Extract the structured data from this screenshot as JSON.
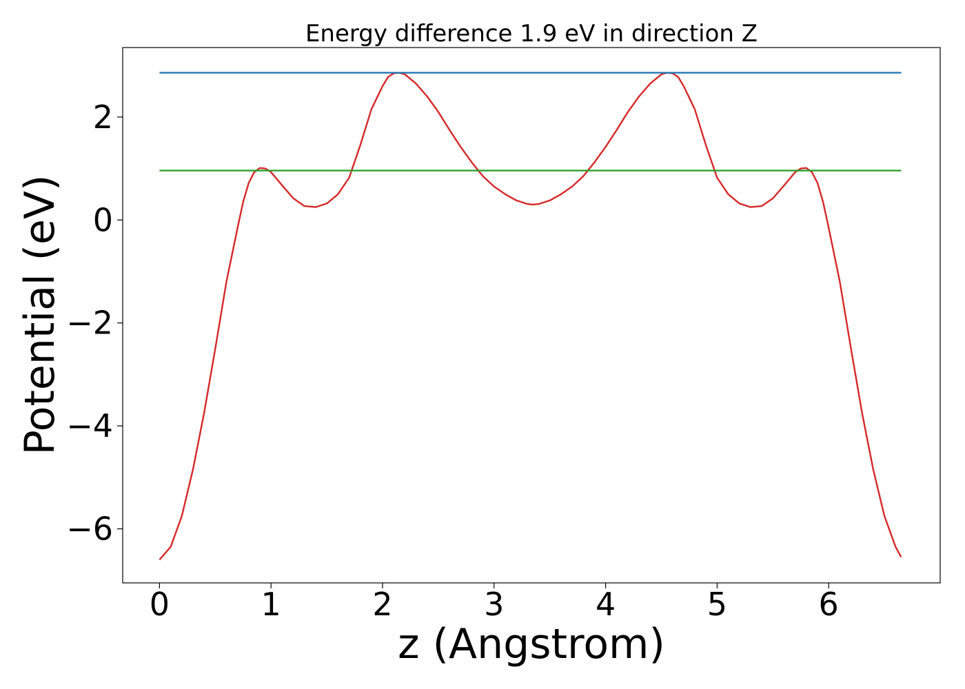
{
  "chart_data": {
    "type": "line",
    "title": "Energy difference 1.9 eV in direction Z",
    "xlabel": "z (Angstrom)",
    "ylabel": "Potential (eV)",
    "xlim": [
      -0.33,
      7.0
    ],
    "ylim": [
      -7.05,
      3.35
    ],
    "xticks": [
      0,
      1,
      2,
      3,
      4,
      5,
      6
    ],
    "xtick_labels": [
      "0",
      "1",
      "2",
      "3",
      "4",
      "5",
      "6"
    ],
    "yticks": [
      2,
      0,
      -2,
      -4,
      -6
    ],
    "ytick_labels": [
      "2",
      "0",
      "−2",
      "−4",
      "−6"
    ],
    "grid": false,
    "legend": "none",
    "series": [
      {
        "color": "#d62728",
        "x": [
          0.0,
          0.1,
          0.2,
          0.3,
          0.4,
          0.5,
          0.6,
          0.7,
          0.75,
          0.8,
          0.85,
          0.9,
          0.95,
          1.0,
          1.05,
          1.1,
          1.2,
          1.3,
          1.4,
          1.5,
          1.6,
          1.7,
          1.8,
          1.9,
          2.0,
          2.05,
          2.1,
          2.15,
          2.2,
          2.3,
          2.4,
          2.5,
          2.6,
          2.7,
          2.8,
          2.9,
          3.0,
          3.1,
          3.2,
          3.3,
          3.35,
          3.4,
          3.5,
          3.6,
          3.7,
          3.8,
          3.9,
          4.0,
          4.1,
          4.2,
          4.3,
          4.4,
          4.5,
          4.55,
          4.6,
          4.65,
          4.7,
          4.8,
          4.9,
          5.0,
          5.1,
          5.2,
          5.3,
          5.4,
          5.5,
          5.6,
          5.7,
          5.75,
          5.8,
          5.85,
          5.9,
          5.95,
          6.0,
          6.1,
          6.2,
          6.3,
          6.4,
          6.5,
          6.6,
          6.65
        ],
        "y": [
          -6.6,
          -6.35,
          -5.75,
          -4.85,
          -3.75,
          -2.5,
          -1.2,
          -0.15,
          0.35,
          0.72,
          0.93,
          1.01,
          1.0,
          0.93,
          0.8,
          0.67,
          0.42,
          0.27,
          0.25,
          0.32,
          0.5,
          0.82,
          1.45,
          2.15,
          2.6,
          2.78,
          2.85,
          2.86,
          2.83,
          2.65,
          2.4,
          2.1,
          1.75,
          1.42,
          1.12,
          0.85,
          0.65,
          0.5,
          0.38,
          0.31,
          0.3,
          0.31,
          0.38,
          0.5,
          0.65,
          0.85,
          1.12,
          1.42,
          1.75,
          2.1,
          2.4,
          2.65,
          2.83,
          2.86,
          2.85,
          2.78,
          2.6,
          2.15,
          1.45,
          0.82,
          0.5,
          0.32,
          0.25,
          0.27,
          0.42,
          0.67,
          0.93,
          1.0,
          1.01,
          0.93,
          0.72,
          0.35,
          -0.15,
          -1.2,
          -2.5,
          -3.75,
          -4.85,
          -5.75,
          -6.35,
          -6.55
        ]
      },
      {
        "color": "#1f77b4",
        "x": [
          0.0,
          6.65
        ],
        "y": [
          2.86,
          2.86
        ]
      },
      {
        "color": "#2ca02c",
        "x": [
          0.0,
          6.65
        ],
        "y": [
          0.96,
          0.96
        ]
      }
    ]
  }
}
